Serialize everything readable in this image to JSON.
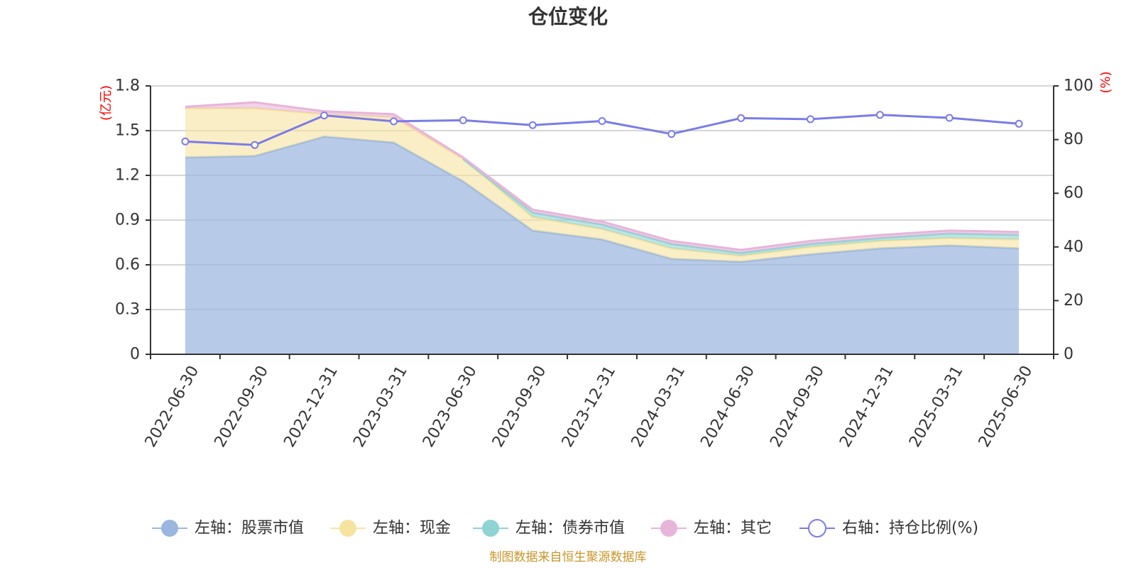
{
  "chart_data": {
    "type": "area",
    "title": "仓位变化",
    "categories": [
      "2022-06-30",
      "2022-09-30",
      "2022-12-31",
      "2023-03-31",
      "2023-06-30",
      "2023-09-30",
      "2023-12-31",
      "2024-03-31",
      "2024-06-30",
      "2024-09-30",
      "2024-12-31",
      "2025-03-31",
      "2025-06-30"
    ],
    "left_axis": {
      "unit": "(亿元)",
      "ylim": [
        0,
        1.8
      ],
      "ticks": [
        "0",
        "0.3",
        "0.6",
        "0.9",
        "1.2",
        "1.5",
        "1.8"
      ]
    },
    "right_axis": {
      "unit": "(%)",
      "ylim": [
        0,
        100
      ],
      "ticks": [
        "0",
        "20",
        "40",
        "60",
        "80",
        "100"
      ]
    },
    "grid": true,
    "stacked": true,
    "legend_position": "bottom",
    "series": [
      {
        "name": "左轴：股票市值",
        "axis": "left",
        "kind": "area",
        "color": "#9bb7e0",
        "values": [
          1.32,
          1.33,
          1.46,
          1.42,
          1.16,
          0.83,
          0.77,
          0.64,
          0.62,
          0.67,
          0.71,
          0.73,
          0.71
        ]
      },
      {
        "name": "左轴：现金",
        "axis": "left",
        "kind": "area",
        "color": "#f7e3a0",
        "values": [
          0.33,
          0.32,
          0.15,
          0.17,
          0.15,
          0.09,
          0.07,
          0.07,
          0.04,
          0.05,
          0.05,
          0.05,
          0.06
        ]
      },
      {
        "name": "左轴：债券市值",
        "axis": "left",
        "kind": "area",
        "color": "#8fd3d5",
        "values": [
          0,
          0,
          0,
          0,
          0,
          0.03,
          0.03,
          0.03,
          0.02,
          0.02,
          0.02,
          0.03,
          0.03
        ]
      },
      {
        "name": "左轴：其它",
        "axis": "left",
        "kind": "area",
        "color": "#e7b5da",
        "values": [
          0.01,
          0.04,
          0.02,
          0.02,
          0.01,
          0.02,
          0.02,
          0.02,
          0.02,
          0.02,
          0.02,
          0.02,
          0.02
        ]
      },
      {
        "name": "右轴：持仓比例(%)",
        "axis": "right",
        "kind": "line",
        "color": "#7a7ce8",
        "values": [
          79.3,
          78.0,
          89.0,
          86.8,
          87.2,
          85.4,
          86.9,
          82.1,
          88.0,
          87.6,
          89.2,
          88.1,
          85.9
        ]
      }
    ]
  },
  "footer": {
    "source": "制图数据来自恒生聚源数据库"
  }
}
